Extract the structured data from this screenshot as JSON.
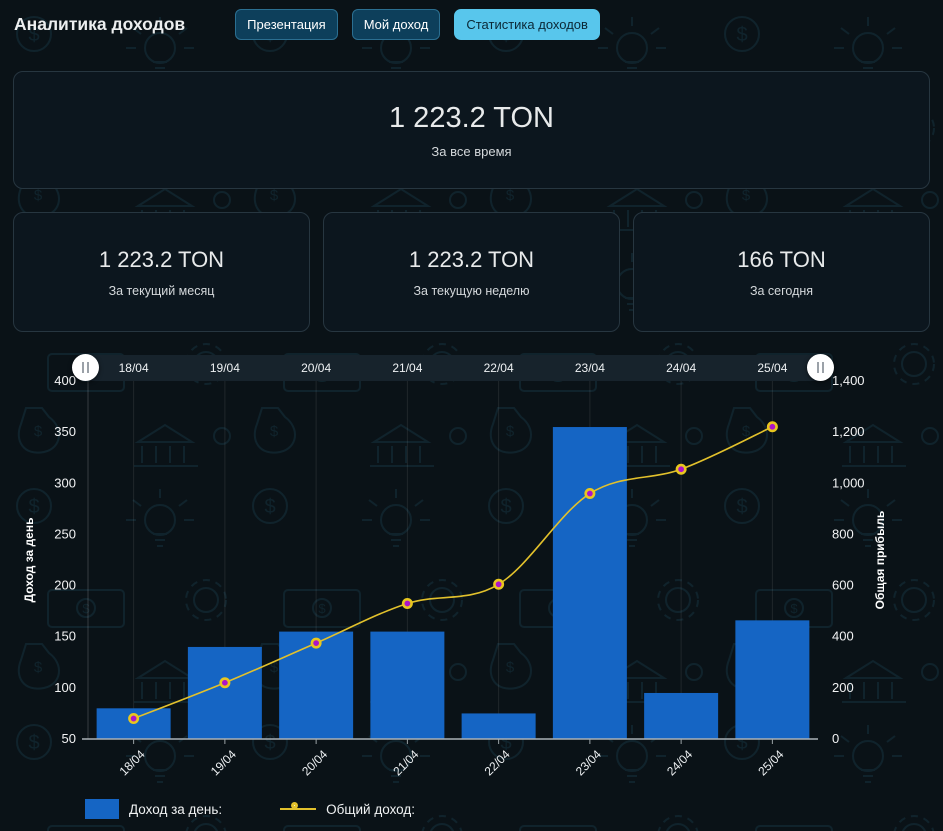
{
  "header": {
    "title": "Аналитика доходов",
    "buttons": [
      {
        "label": "Презентация",
        "active": false
      },
      {
        "label": "Мой доход",
        "active": false
      },
      {
        "label": "Статистика доходов",
        "active": true
      }
    ]
  },
  "summary": {
    "total": {
      "value": "1 223.2 TON",
      "label": "За все время"
    },
    "cards": [
      {
        "value": "1 223.2 TON",
        "label": "За текущий месяц"
      },
      {
        "value": "1 223.2 TON",
        "label": "За текущую неделю"
      },
      {
        "value": "166 TON",
        "label": "За сегодня"
      }
    ]
  },
  "chart_data": {
    "type": "bar",
    "subtype": "combo bar+line, dual y-axes, range slider on top",
    "categories": [
      "18/04",
      "19/04",
      "20/04",
      "21/04",
      "22/04",
      "23/04",
      "24/04",
      "25/04"
    ],
    "series": [
      {
        "name": "Доход за день",
        "type": "bar",
        "axis": "left",
        "values": [
          80,
          140,
          155,
          155,
          75,
          355,
          95,
          166
        ],
        "color": "#1565c4"
      },
      {
        "name": "Общий доход",
        "type": "line",
        "axis": "right",
        "values": [
          80,
          220,
          375,
          530,
          605,
          960,
          1055,
          1221
        ],
        "color": "#e2c12c",
        "marker_fill": "#ad14c9",
        "marker_ring": "#e8c61f"
      }
    ],
    "left_axis": {
      "title": "Доход за день",
      "min": 50,
      "max": 400,
      "ticks": [
        "400",
        "350",
        "300",
        "250",
        "200",
        "150",
        "100",
        "50"
      ]
    },
    "right_axis": {
      "title": "Общая прибыль",
      "min": 0,
      "max": 1400,
      "ticks": [
        "1,400",
        "1,200",
        "1,000",
        "800",
        "600",
        "400",
        "200",
        "0"
      ]
    },
    "grid": "vertical gridlines only",
    "legend_position": "bottom-left",
    "legend": [
      {
        "label": "Доход за день:",
        "marker": "bar-swatch"
      },
      {
        "label": "Общий доход:",
        "marker": "line-dot"
      }
    ]
  },
  "colors": {
    "page_bg": "#0a1217",
    "card_bg": "#0c161e",
    "card_border": "#273640",
    "button_bg": "#0d3f5b",
    "button_border": "#2b6f91",
    "button_active_bg": "#58c6ec",
    "button_active_text": "#0b2836",
    "bar": "#1565c4",
    "line": "#e2c12c",
    "slider_track": "#17232c",
    "handle": "#ffffff"
  }
}
